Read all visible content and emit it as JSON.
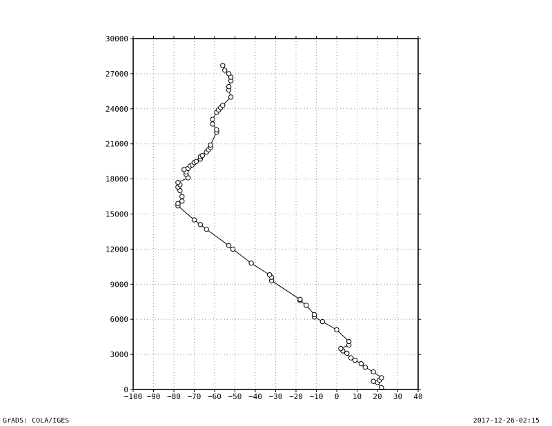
{
  "footer": {
    "left": "GrADS: COLA/IGES",
    "right": "2017-12-26-02:15"
  },
  "chart_data": {
    "type": "line",
    "title": "",
    "xlabel": "",
    "ylabel": "",
    "xlim": [
      -100,
      40
    ],
    "ylim": [
      0,
      30000
    ],
    "grid": true,
    "marker": "open-circle",
    "x_ticks": [
      -100,
      -90,
      -80,
      -70,
      -60,
      -50,
      -40,
      -30,
      -20,
      -10,
      0,
      10,
      20,
      30,
      40
    ],
    "x_tick_labels": [
      "−100",
      "−90",
      "−80",
      "−70",
      "−60",
      "−50",
      "−40",
      "−30",
      "−20",
      "−10",
      "0",
      "10",
      "20",
      "30",
      "40"
    ],
    "y_ticks": [
      0,
      3000,
      6000,
      9000,
      12000,
      15000,
      18000,
      21000,
      24000,
      27000,
      30000
    ],
    "y_tick_labels": [
      "0",
      "3000",
      "6000",
      "9000",
      "12000",
      "15000",
      "18000",
      "21000",
      "24000",
      "27000",
      "30000"
    ],
    "series": [
      {
        "color": "#000000",
        "points": [
          [
            22,
            150
          ],
          [
            20,
            600
          ],
          [
            18,
            700
          ],
          [
            21,
            800
          ],
          [
            22,
            1000
          ],
          [
            18,
            1500
          ],
          [
            14,
            1900
          ],
          [
            12,
            2200
          ],
          [
            9,
            2500
          ],
          [
            7,
            2700
          ],
          [
            5,
            3100
          ],
          [
            3,
            3300
          ],
          [
            2,
            3500
          ],
          [
            6,
            3800
          ],
          [
            6,
            4100
          ],
          [
            0,
            5100
          ],
          [
            -7,
            5800
          ],
          [
            -11,
            6200
          ],
          [
            -11,
            6400
          ],
          [
            -15,
            7200
          ],
          [
            -18,
            7600
          ],
          [
            -18,
            7700
          ],
          [
            -32,
            9300
          ],
          [
            -32,
            9600
          ],
          [
            -33,
            9800
          ],
          [
            -42,
            10800
          ],
          [
            -51,
            12000
          ],
          [
            -53,
            12300
          ],
          [
            -64,
            13700
          ],
          [
            -67,
            14100
          ],
          [
            -70,
            14500
          ],
          [
            -78,
            15700
          ],
          [
            -78,
            15900
          ],
          [
            -76,
            16100
          ],
          [
            -76,
            16500
          ],
          [
            -77,
            17000
          ],
          [
            -78,
            17300
          ],
          [
            -77,
            17500
          ],
          [
            -78,
            17700
          ],
          [
            -73,
            18100
          ],
          [
            -74,
            18400
          ],
          [
            -74,
            18600
          ],
          [
            -75,
            18800
          ],
          [
            -73,
            18900
          ],
          [
            -72,
            19100
          ],
          [
            -71,
            19200
          ],
          [
            -70,
            19400
          ],
          [
            -69,
            19500
          ],
          [
            -67,
            19700
          ],
          [
            -67,
            19900
          ],
          [
            -66,
            20000
          ],
          [
            -64,
            20300
          ],
          [
            -63,
            20500
          ],
          [
            -62,
            20700
          ],
          [
            -62,
            20900
          ],
          [
            -59,
            22000
          ],
          [
            -59,
            22200
          ],
          [
            -61,
            22700
          ],
          [
            -61,
            23100
          ],
          [
            -59,
            23700
          ],
          [
            -58,
            23900
          ],
          [
            -57,
            24100
          ],
          [
            -56,
            24300
          ],
          [
            -52,
            25000
          ],
          [
            -53,
            25600
          ],
          [
            -53,
            25900
          ],
          [
            -52,
            26400
          ],
          [
            -52,
            26700
          ],
          [
            -53,
            27000
          ],
          [
            -55,
            27300
          ],
          [
            -56,
            27700
          ]
        ]
      }
    ]
  }
}
